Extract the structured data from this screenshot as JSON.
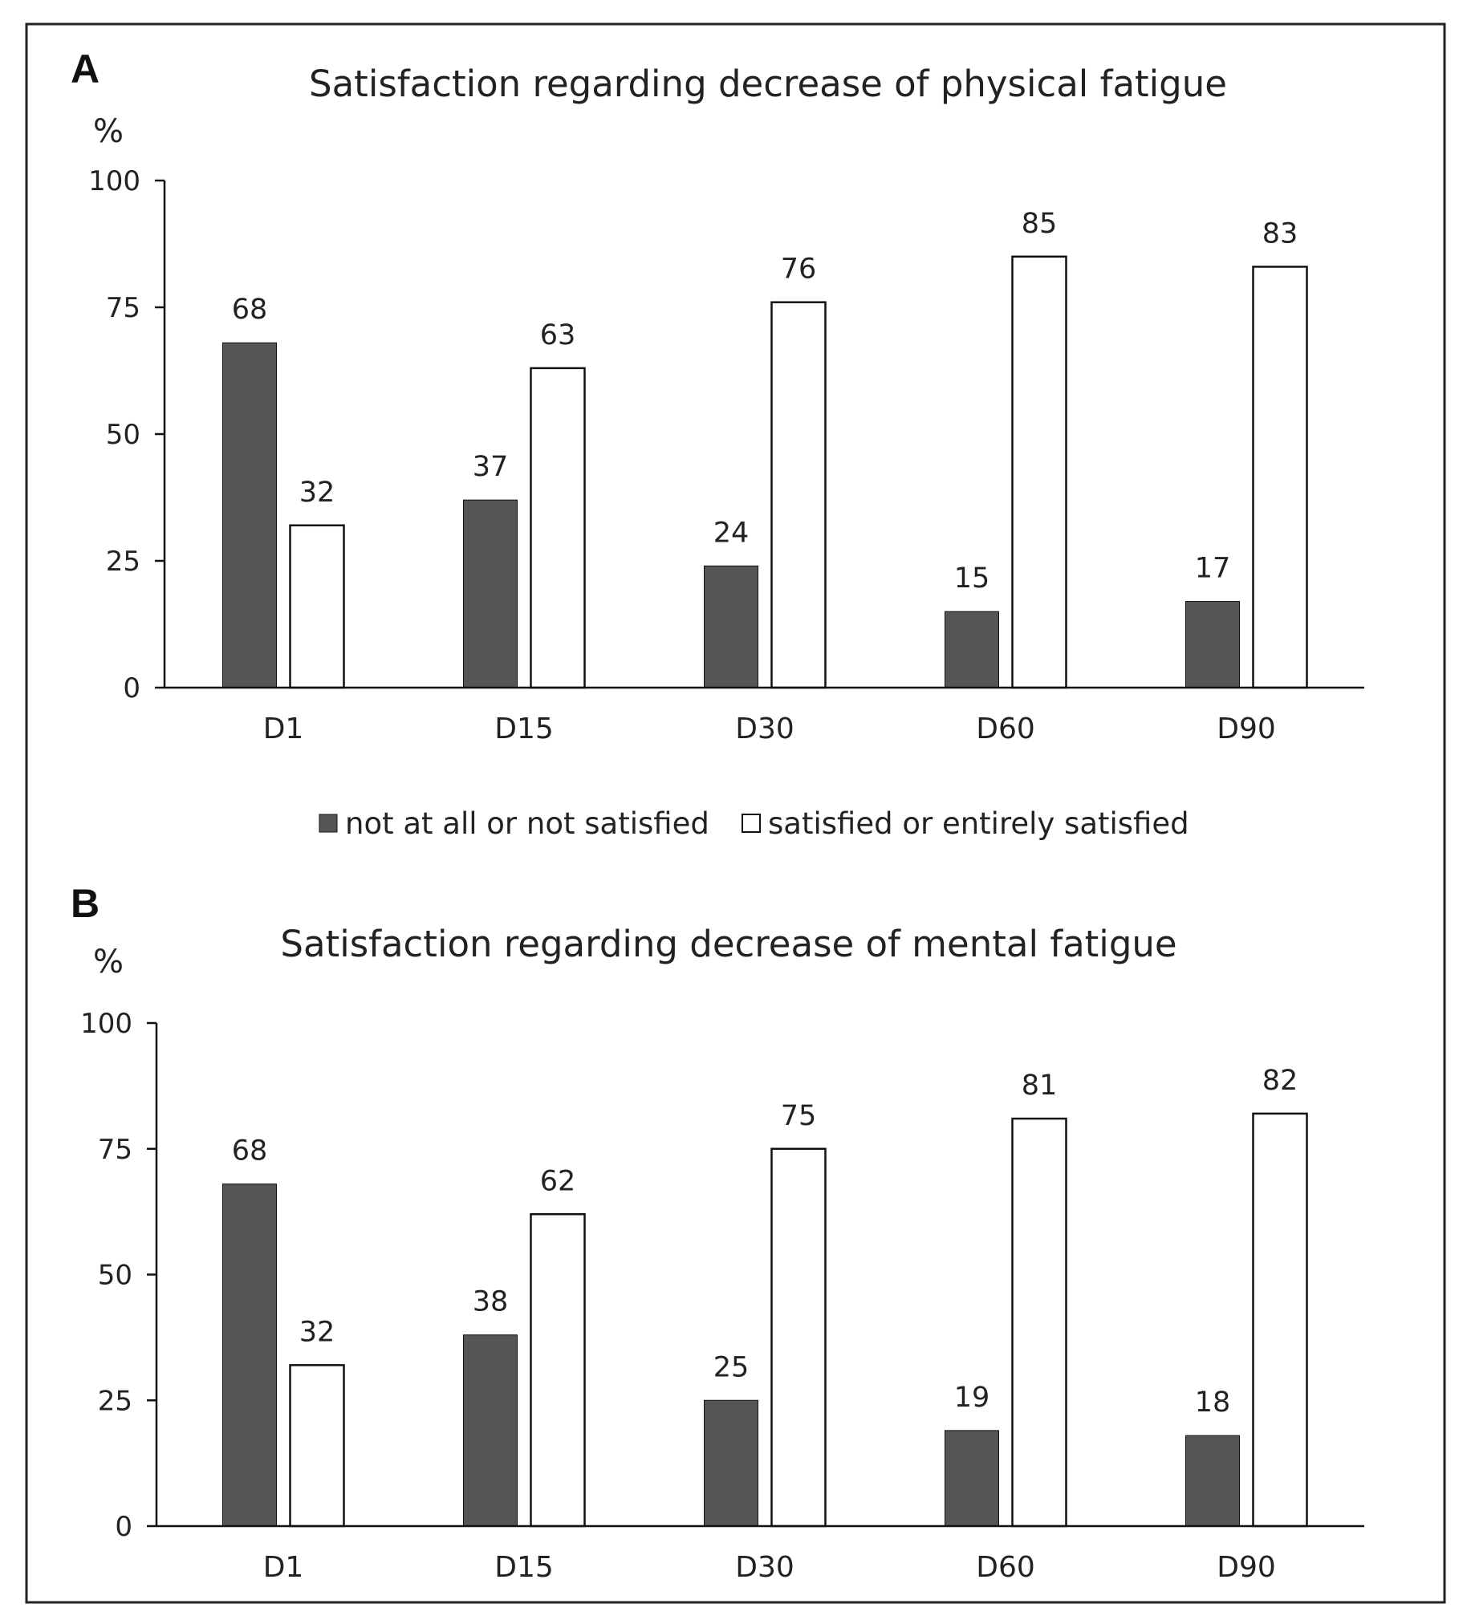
{
  "colors": {
    "series_dark": "#555555",
    "series_light": "#ffffff",
    "outline": "#111111",
    "frame": "#222222"
  },
  "legend": {
    "items": [
      {
        "label": "not at all or not satisfied",
        "color": "#555555"
      },
      {
        "label": "satisfied or entirely satisfied",
        "color": "#ffffff"
      }
    ]
  },
  "chart_data": [
    {
      "panel": "A",
      "type": "bar",
      "title": "Satisfaction regarding decrease of physical fatigue",
      "ylabel": "%",
      "xlabel": "",
      "ylim": [
        0,
        100
      ],
      "yticks": [
        0,
        25,
        50,
        75,
        100
      ],
      "categories": [
        "D1",
        "D15",
        "D30",
        "D60",
        "D90"
      ],
      "series": [
        {
          "name": "not at all or not satisfied",
          "values": [
            68,
            37,
            24,
            15,
            17
          ]
        },
        {
          "name": "satisfied or entirely satisfied",
          "values": [
            32,
            63,
            76,
            85,
            83
          ]
        }
      ],
      "grid": false
    },
    {
      "panel": "B",
      "type": "bar",
      "title": "Satisfaction regarding decrease of mental fatigue",
      "ylabel": "%",
      "xlabel": "",
      "ylim": [
        0,
        100
      ],
      "yticks": [
        0,
        25,
        50,
        75,
        100
      ],
      "categories": [
        "D1",
        "D15",
        "D30",
        "D60",
        "D90"
      ],
      "series": [
        {
          "name": "not at all or not satisfied",
          "values": [
            68,
            38,
            25,
            19,
            18
          ]
        },
        {
          "name": "satisfied or entirely satisfied",
          "values": [
            32,
            62,
            75,
            81,
            82
          ]
        }
      ],
      "grid": false
    }
  ]
}
